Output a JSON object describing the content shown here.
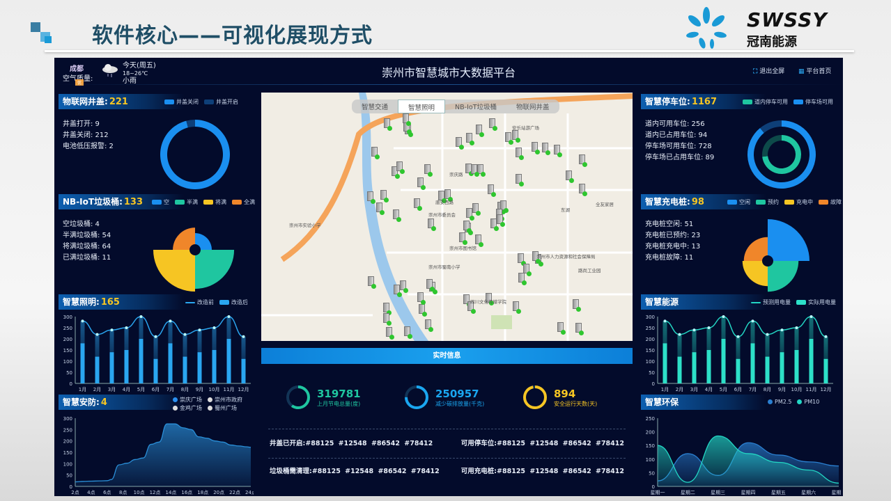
{
  "slide": {
    "title": "软件核心——可视化展现方式",
    "logo_text": "SWSSY",
    "logo_sub": "冠南能源",
    "accent_colors": [
      "#2e8ecf",
      "#1f4e66"
    ]
  },
  "header": {
    "city": "成都",
    "air_quality_label": "空气质量:",
    "air_quality_badge": "优",
    "weather_icon": "cloud-rain-icon",
    "weather_day": "今天(周五)",
    "temperature": "18~26℃",
    "weather": "小雨",
    "title": "崇州市智慧城市大数据平台",
    "exit_fullscreen": "退出全屏",
    "home": "平台首页"
  },
  "left": {
    "manhole": {
      "title": "物联网井盖:",
      "count": "221",
      "stats": [
        "井盖打开: 9",
        "井盖关闭: 212",
        "电池低压报警: 2"
      ],
      "legend": [
        "井盖关闭",
        "井盖开启"
      ],
      "values": [
        212,
        9
      ],
      "colors": [
        "#1a8ff0",
        "#0e3f78"
      ]
    },
    "trash": {
      "title": "NB-IoT垃圾桶:",
      "count": "133",
      "stats": [
        "空垃圾桶: 4",
        "半满垃圾桶: 54",
        "将满垃圾桶: 64",
        "已满垃圾桶: 11"
      ],
      "legend": [
        "空",
        "半满",
        "将满",
        "全满"
      ],
      "values": [
        4,
        54,
        64,
        11
      ],
      "colors": [
        "#1a8ff0",
        "#1fc6a0",
        "#f6c523",
        "#f0862a"
      ]
    },
    "lighting": {
      "title": "智慧照明:",
      "count": "165",
      "legend": [
        "改造前",
        "改造后"
      ]
    },
    "security": {
      "title": "智慧安防:",
      "count": "4",
      "legend": [
        "崇庆广场",
        "崇州市政府",
        "金鸡广场",
        "蜀州广场"
      ]
    }
  },
  "right": {
    "parking": {
      "title": "智慧停车位:",
      "count": "1167",
      "stats": [
        "道内可用车位: 256",
        "道内已占用车位: 94",
        "停车场可用车位: 728",
        "停车场已占用车位: 89"
      ],
      "legend": [
        "道内停车可用",
        "停车场可用"
      ],
      "colors": [
        "#1fc6a0",
        "#1a8ff0"
      ]
    },
    "charging": {
      "title": "智慧充电桩:",
      "count": "98",
      "stats": [
        "充电桩空闲: 51",
        "充电桩已预约: 23",
        "充电桩充电中: 13",
        "充电桩故障: 11"
      ],
      "legend": [
        "空闲",
        "预约",
        "充电中",
        "故障"
      ],
      "values": [
        51,
        23,
        13,
        11
      ],
      "colors": [
        "#1a8ff0",
        "#1fc6a0",
        "#f6c523",
        "#f0862a"
      ]
    },
    "energy": {
      "title": "智慧能源",
      "legend": [
        "预测用电量",
        "实际用电量"
      ]
    },
    "environment": {
      "title": "智慧环保",
      "legend": [
        "PM2.5",
        "PM10"
      ]
    }
  },
  "map": {
    "tabs": [
      "智慧交通",
      "智慧照明",
      "NB-IoT垃圾桶",
      "物联网井盖"
    ],
    "active_tab": 1,
    "labels": [
      "安乐站游广场",
      "崇州市图书馆",
      "崇州市蜀南小学",
      "崇州市人力资源和社会保障局",
      "路尚工业园",
      "全友家居",
      "东湖",
      "崇州市委员会",
      "四川文化传媒学院",
      "崇州市实验小学",
      "崇庆路",
      "唐安西路"
    ]
  },
  "realtime": {
    "title": "实时信息",
    "kpis": [
      {
        "value": "319781",
        "label": "上月节电总量(度)",
        "color": "#1fc6a0",
        "fill": 0.6
      },
      {
        "value": "250957",
        "label": "减少碳排放量(千克)",
        "color": "#1aa6f0",
        "fill": 0.75
      },
      {
        "value": "894",
        "label": "安全运行天数(天)",
        "color": "#f6c523",
        "fill": 0.97
      }
    ],
    "rows": [
      {
        "label": "井盖已开启:",
        "ids": "#88125  #12548  #86542  #78412"
      },
      {
        "label": "可用停车位:",
        "ids": "#88125  #12548  #86542  #78412"
      },
      {
        "label": "垃圾桶需清理:",
        "ids": "#88125  #12548  #86542  #78412"
      },
      {
        "label": "可用充电桩:",
        "ids": "#88125  #12548  #86542  #78412"
      }
    ]
  },
  "chart_data": [
    {
      "type": "bar",
      "id": "lighting",
      "categories": [
        "1月",
        "2月",
        "3月",
        "4月",
        "5月",
        "6月",
        "7月",
        "8月",
        "9月",
        "10月",
        "11月",
        "12月"
      ],
      "ylim": [
        0,
        300
      ],
      "yticks": [
        0,
        50,
        100,
        150,
        200,
        250,
        300
      ],
      "series": [
        {
          "name": "改造前",
          "kind": "line",
          "values": [
            280,
            220,
            240,
            250,
            300,
            210,
            280,
            220,
            240,
            250,
            300,
            210
          ]
        },
        {
          "name": "改造后",
          "kind": "bar",
          "values": [
            180,
            120,
            140,
            150,
            200,
            110,
            180,
            120,
            140,
            150,
            200,
            110
          ]
        }
      ],
      "colors": [
        "#2aa6f0",
        "#2aa6f0"
      ]
    },
    {
      "type": "area",
      "id": "security",
      "categories": [
        "2点",
        "4点",
        "6点",
        "8点",
        "10点",
        "12点",
        "14点",
        "16点",
        "18点",
        "20点",
        "22点",
        "24点"
      ],
      "x": [
        2,
        3,
        4,
        5,
        6,
        6.5,
        7.5,
        8.5,
        9.5,
        10.5,
        11.5,
        12.5,
        13.5,
        14.5,
        15.5,
        16.5,
        17.5,
        18.5,
        19.5,
        20.5,
        21.5,
        22.5,
        23.5,
        24
      ],
      "ylim": [
        0,
        300
      ],
      "yticks": [
        0,
        50,
        100,
        150,
        200,
        250,
        300
      ],
      "series": [
        {
          "name": "崇庆广场",
          "values": [
            20,
            22,
            23,
            24,
            25,
            30,
            95,
            102,
            118,
            125,
            185,
            195,
            275,
            275,
            258,
            250,
            218,
            212,
            200,
            195,
            182,
            178,
            174,
            172
          ]
        }
      ]
    },
    {
      "type": "bar",
      "id": "energy",
      "categories": [
        "1月",
        "2月",
        "3月",
        "4月",
        "5月",
        "6月",
        "7月",
        "8月",
        "9月",
        "10月",
        "11月",
        "12月"
      ],
      "ylim": [
        0,
        300
      ],
      "yticks": [
        0,
        50,
        100,
        150,
        200,
        250,
        300
      ],
      "series": [
        {
          "name": "预测用电量",
          "kind": "line",
          "values": [
            280,
            220,
            240,
            250,
            300,
            210,
            280,
            220,
            240,
            250,
            300,
            210
          ]
        },
        {
          "name": "实际用电量",
          "kind": "bar",
          "values": [
            180,
            120,
            140,
            150,
            200,
            110,
            180,
            120,
            140,
            150,
            200,
            110
          ]
        }
      ],
      "colors": [
        "#23d6c4",
        "#2de0c8"
      ]
    },
    {
      "type": "area",
      "id": "environment",
      "categories": [
        "星期一",
        "星期二",
        "星期三",
        "星期四",
        "星期五",
        "星期六",
        "星期日"
      ],
      "ylim": [
        0,
        250
      ],
      "yticks": [
        0,
        50,
        100,
        150,
        200,
        250
      ],
      "series": [
        {
          "name": "PM2.5",
          "values": [
            20,
            120,
            40,
            160,
            115,
            90,
            75
          ]
        },
        {
          "name": "PM10",
          "values": [
            150,
            15,
            185,
            120,
            88,
            60,
            12
          ]
        }
      ],
      "colors": [
        "#2a7fd0",
        "#23d6c4"
      ]
    }
  ]
}
